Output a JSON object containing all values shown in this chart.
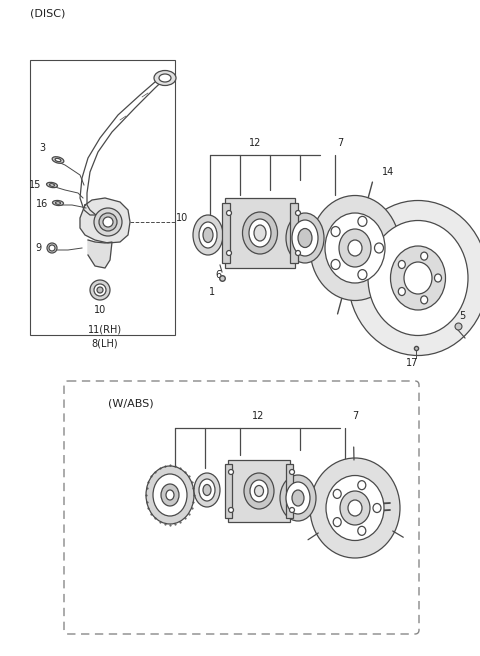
{
  "title": "(DISC)",
  "wabs_label": "(W/ABS)",
  "bg_color": "#ffffff",
  "line_color": "#4a4a4a",
  "text_color": "#222222",
  "fig_width": 4.8,
  "fig_height": 6.56,
  "dpi": 100
}
